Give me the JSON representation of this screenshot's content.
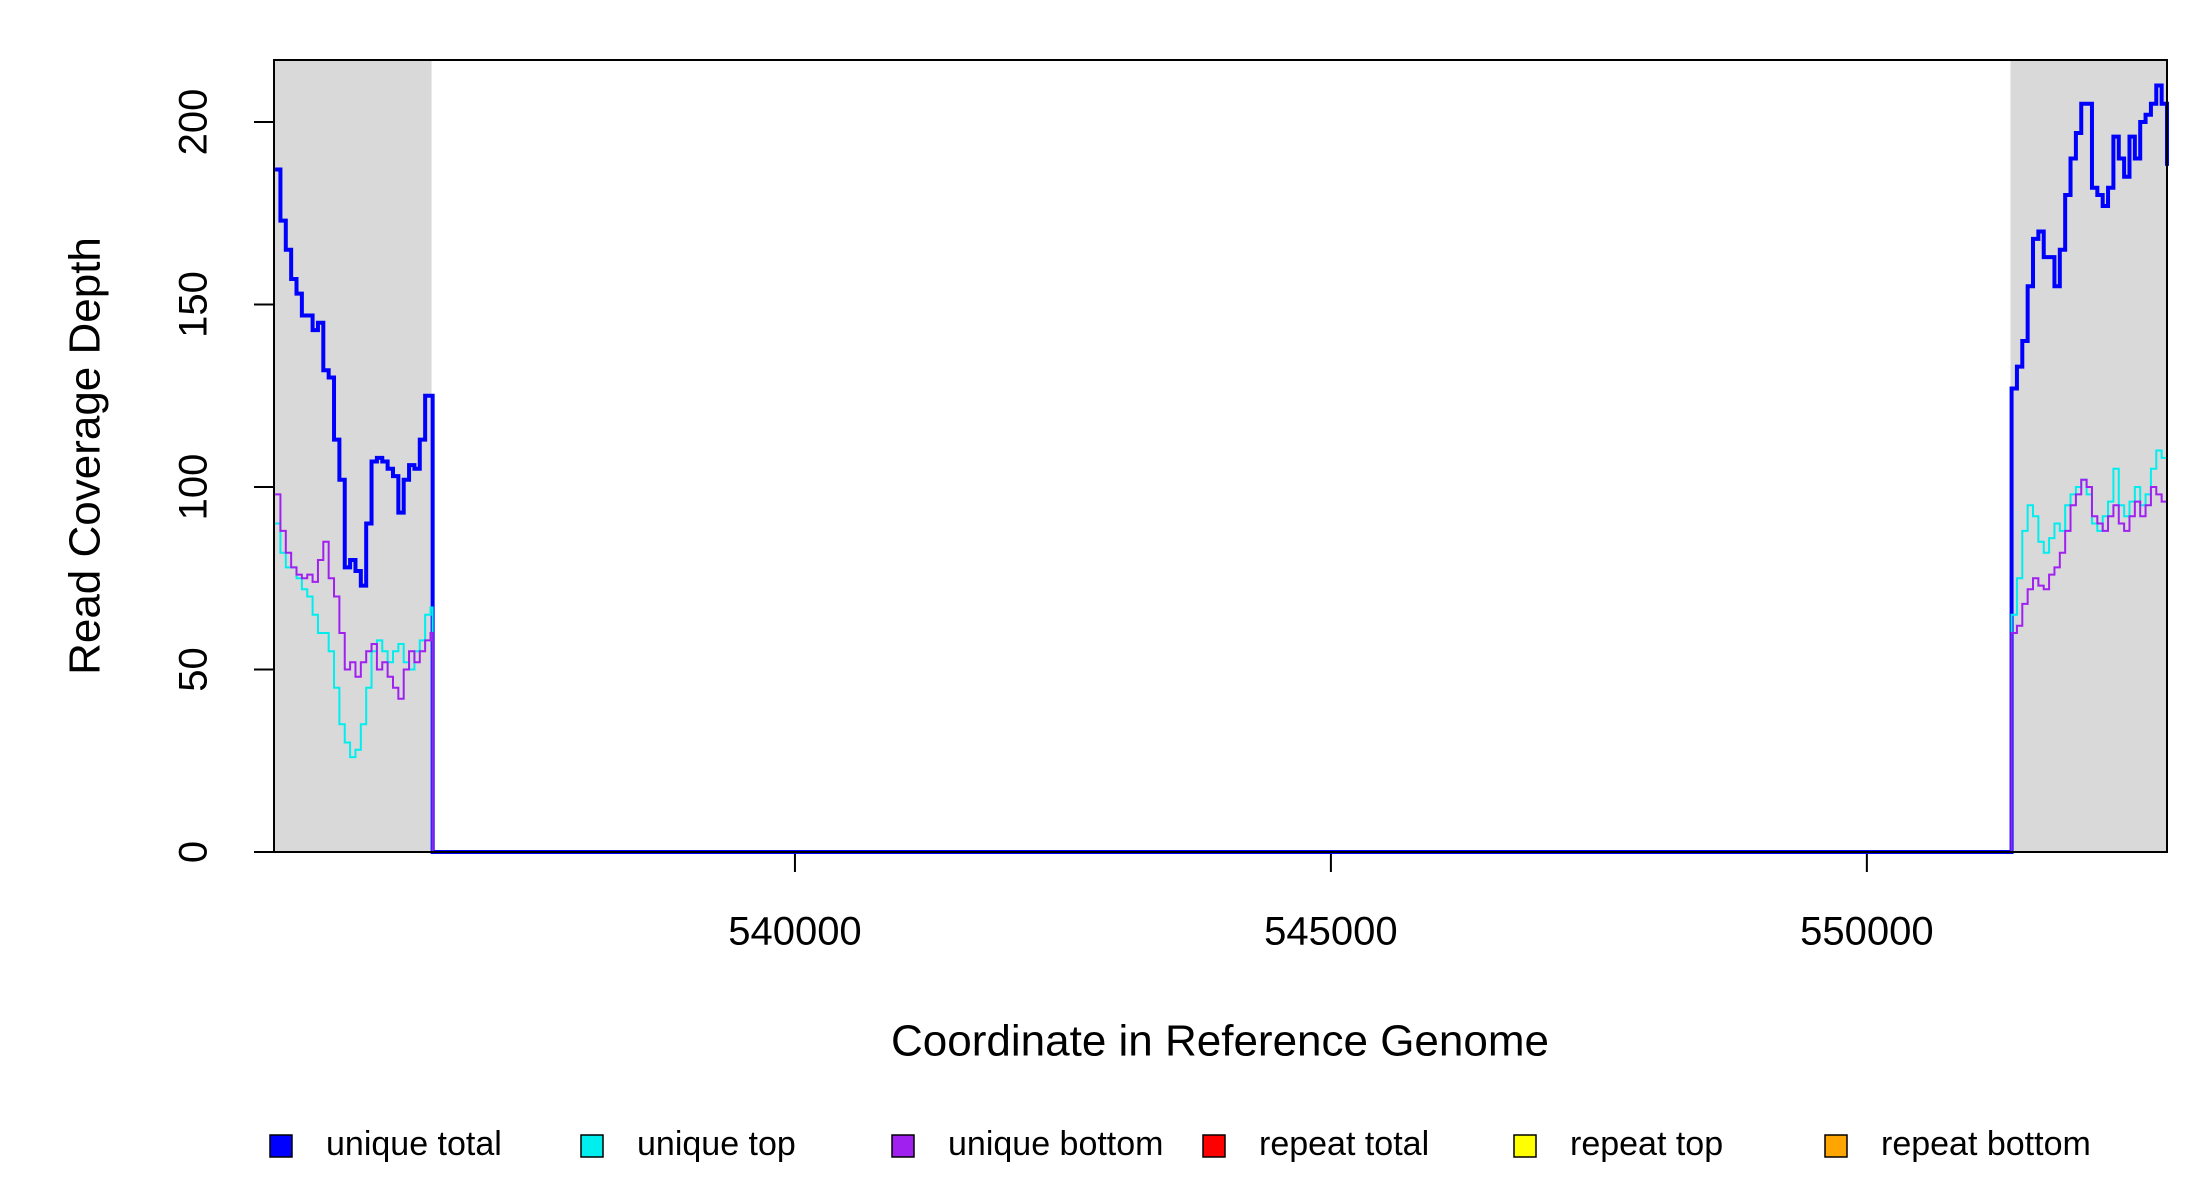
{
  "chart_data": {
    "type": "step",
    "xlabel": "Coordinate in Reference Genome",
    "ylabel": "Read Coverage Depth",
    "xlim": [
      535140,
      552800
    ],
    "ylim": [
      0,
      217
    ],
    "xticks": [
      540000,
      545000,
      550000
    ],
    "yticks": [
      0,
      50,
      100,
      150,
      200
    ],
    "shaded_regions": [
      [
        535140,
        536610
      ],
      [
        551340,
        552800
      ]
    ],
    "shade_color": "#d9d9d9",
    "x": [
      535150,
      535200,
      535250,
      535300,
      535350,
      535400,
      535450,
      535500,
      535550,
      535600,
      535650,
      535700,
      535750,
      535800,
      535850,
      535900,
      535950,
      536000,
      536050,
      536100,
      536150,
      536200,
      536250,
      536300,
      536350,
      536400,
      536450,
      536500,
      536550,
      536600,
      536620,
      551330,
      551350,
      551400,
      551450,
      551500,
      551550,
      551600,
      551650,
      551700,
      551750,
      551800,
      551850,
      551900,
      551950,
      552000,
      552050,
      552100,
      552150,
      552200,
      552250,
      552300,
      552350,
      552400,
      552450,
      552500,
      552550,
      552600,
      552650,
      552700,
      552750,
      552800
    ],
    "series": [
      {
        "name": "unique total",
        "color": "#0000ff",
        "values": [
          187,
          173,
          165,
          157,
          153,
          147,
          147,
          143,
          145,
          132,
          130,
          113,
          102,
          78,
          80,
          77,
          73,
          90,
          107,
          108,
          107,
          105,
          103,
          93,
          102,
          106,
          105,
          113,
          125,
          125,
          0,
          0,
          127,
          133,
          140,
          155,
          168,
          170,
          163,
          163,
          155,
          165,
          180,
          190,
          197,
          205,
          205,
          182,
          180,
          177,
          182,
          196,
          190,
          185,
          196,
          190,
          200,
          202,
          205,
          210,
          205,
          188
        ]
      },
      {
        "name": "unique top",
        "color": "#00eeee",
        "values": [
          90,
          82,
          78,
          78,
          75,
          72,
          70,
          65,
          60,
          60,
          55,
          45,
          35,
          30,
          26,
          28,
          35,
          45,
          55,
          58,
          55,
          52,
          55,
          57,
          52,
          50,
          55,
          58,
          65,
          67,
          0,
          0,
          65,
          75,
          88,
          95,
          92,
          85,
          82,
          86,
          90,
          88,
          95,
          98,
          100,
          102,
          98,
          90,
          88,
          92,
          96,
          105,
          95,
          92,
          96,
          100,
          95,
          98,
          105,
          110,
          108,
          100
        ]
      },
      {
        "name": "unique bottom",
        "color": "#a020f0",
        "values": [
          98,
          88,
          82,
          78,
          76,
          75,
          76,
          74,
          80,
          85,
          75,
          70,
          60,
          50,
          52,
          48,
          52,
          55,
          57,
          50,
          52,
          48,
          45,
          42,
          50,
          55,
          52,
          55,
          58,
          60,
          0,
          0,
          60,
          62,
          68,
          72,
          75,
          73,
          72,
          76,
          78,
          82,
          88,
          95,
          98,
          102,
          100,
          92,
          90,
          88,
          92,
          95,
          90,
          88,
          92,
          96,
          92,
          95,
          100,
          98,
          96,
          90
        ]
      },
      {
        "name": "repeat total",
        "color": "#ff0000",
        "values": [
          0,
          0,
          0,
          0,
          0,
          0,
          0,
          0,
          0,
          0,
          0,
          0,
          0,
          0,
          0,
          0,
          0,
          0,
          0,
          0,
          0,
          0,
          0,
          0,
          0,
          0,
          0,
          0,
          0,
          0,
          0,
          0,
          0,
          0,
          0,
          0,
          0,
          0,
          0,
          0,
          0,
          0,
          0,
          0,
          0,
          0,
          0,
          0,
          0,
          0,
          0,
          0,
          0,
          0,
          0,
          0,
          0,
          0,
          0,
          0,
          0,
          0
        ]
      },
      {
        "name": "repeat top",
        "color": "#ffff00",
        "values": [
          0,
          0,
          0,
          0,
          0,
          0,
          0,
          0,
          0,
          0,
          0,
          0,
          0,
          0,
          0,
          0,
          0,
          0,
          0,
          0,
          0,
          0,
          0,
          0,
          0,
          0,
          0,
          0,
          0,
          0,
          0,
          0,
          0,
          0,
          0,
          0,
          0,
          0,
          0,
          0,
          0,
          0,
          0,
          0,
          0,
          0,
          0,
          0,
          0,
          0,
          0,
          0,
          0,
          0,
          0,
          0,
          0,
          0,
          0,
          0,
          0,
          0
        ]
      },
      {
        "name": "repeat bottom",
        "color": "#ffa500",
        "values": [
          0,
          0,
          0,
          0,
          0,
          0,
          0,
          0,
          0,
          0,
          0,
          0,
          0,
          0,
          0,
          0,
          0,
          0,
          0,
          0,
          0,
          0,
          0,
          0,
          0,
          0,
          0,
          0,
          0,
          0,
          0,
          0,
          0,
          0,
          0,
          0,
          0,
          0,
          0,
          0,
          0,
          0,
          0,
          0,
          0,
          0,
          0,
          0,
          0,
          0,
          0,
          0,
          0,
          0,
          0,
          0,
          0,
          0,
          0,
          0,
          0,
          0
        ]
      }
    ]
  }
}
